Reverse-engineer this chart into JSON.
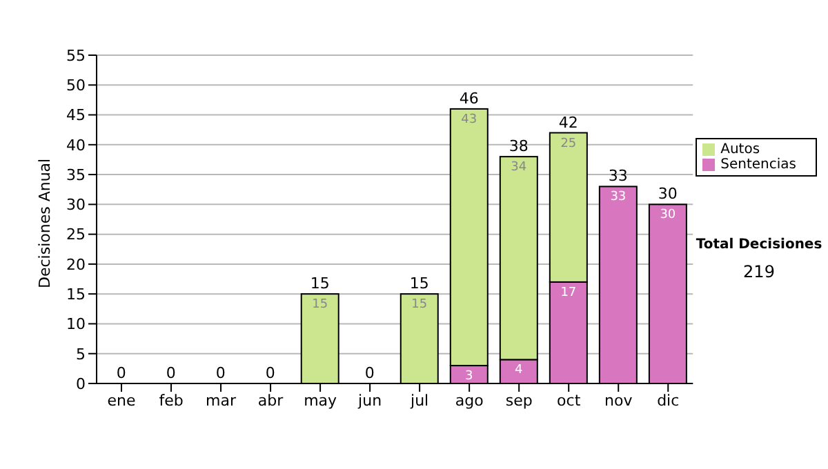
{
  "chart_data": {
    "type": "bar",
    "stacked": true,
    "ylabel": "Decisiones Anual",
    "categories": [
      "ene",
      "feb",
      "mar",
      "abr",
      "may",
      "jun",
      "jul",
      "ago",
      "sep",
      "oct",
      "nov",
      "dic"
    ],
    "series": [
      {
        "name": "Sentencias",
        "color": "#d877c0",
        "values": [
          0,
          0,
          0,
          0,
          0,
          0,
          0,
          3,
          4,
          17,
          33,
          30
        ],
        "value_labels": [
          null,
          null,
          null,
          null,
          null,
          null,
          null,
          "3",
          "4",
          "17",
          "33",
          "30"
        ]
      },
      {
        "name": "Autos",
        "color": "#cce58f",
        "values": [
          0,
          0,
          0,
          0,
          15,
          0,
          15,
          43,
          34,
          25,
          0,
          0
        ],
        "value_labels": [
          null,
          null,
          null,
          null,
          "15",
          null,
          "15",
          "43",
          "34",
          "25",
          null,
          null
        ]
      }
    ],
    "totals": [
      "0",
      "0",
      "0",
      "0",
      "15",
      "0",
      "15",
      "46",
      "38",
      "42",
      "33",
      "30"
    ],
    "ylim": [
      0,
      55
    ],
    "yticks": [
      0,
      5,
      10,
      15,
      20,
      25,
      30,
      35,
      40,
      45,
      50,
      55
    ],
    "grid": "y",
    "legend": "right",
    "annotations": [
      "Total Decisiones",
      "219"
    ]
  }
}
